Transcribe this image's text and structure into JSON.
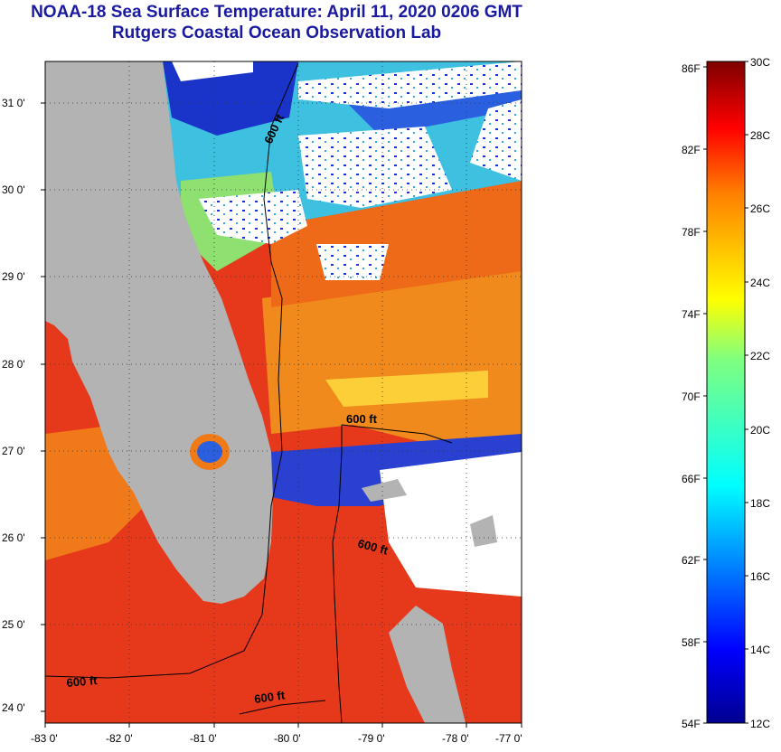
{
  "title": {
    "line1": "NOAA-18 Sea Surface Temperature:  April 11, 2020 0206 GMT",
    "line2": "Rutgers Coastal Ocean Observation Lab"
  },
  "map": {
    "lon_labels": [
      "-83 0'",
      "-82 0'",
      "-81 0'",
      "-80 0'",
      "-79 0'",
      "-78 0'",
      "-77 0'"
    ],
    "lat_labels": [
      "31 0'",
      "30 0'",
      "29 0'",
      "28 0'",
      "27 0'",
      "26 0'",
      "25 0'",
      "24 0'"
    ],
    "lon_range": [
      -83,
      -77
    ],
    "lat_range": [
      23.9,
      31.4
    ],
    "contour_labels": [
      "600 ft",
      "600 ft",
      "600 ft",
      "600 ft",
      "600 ft"
    ],
    "colors": {
      "land": "#b3b3b3",
      "cloud": "#ffffff",
      "warm_water": "#e8401a",
      "mid_water": "#f07a18",
      "cool_water": "#1a33c8"
    }
  },
  "colorbar": {
    "fahrenheit_labels": [
      "86F",
      "82F",
      "78F",
      "74F",
      "70F",
      "66F",
      "62F",
      "58F",
      "54F"
    ],
    "celsius_labels": [
      "30C",
      "28C",
      "26C",
      "24C",
      "22C",
      "20C",
      "18C",
      "16C",
      "14C",
      "12C"
    ],
    "min_c": 12,
    "max_c": 30
  }
}
